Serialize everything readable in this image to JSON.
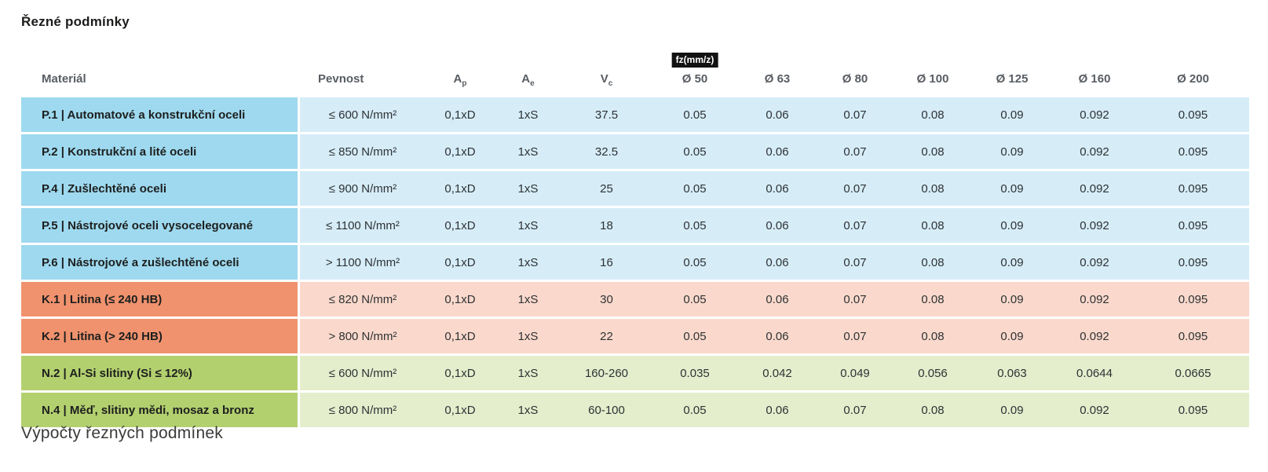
{
  "page": {
    "title": "Řezné podmínky",
    "footer_heading": "Výpočty řezných podmínek"
  },
  "table": {
    "columns": [
      {
        "key": "material",
        "label": "Materiál",
        "sub": ""
      },
      {
        "key": "pevnost",
        "label": "Pevnost",
        "sub": ""
      },
      {
        "key": "ap",
        "label": "A",
        "sub": "p"
      },
      {
        "key": "ae",
        "label": "A",
        "sub": "e"
      },
      {
        "key": "vc",
        "label": "V",
        "sub": "c"
      },
      {
        "key": "d50",
        "label": "Ø 50",
        "sub": "",
        "badge": "fz(mm/z)"
      },
      {
        "key": "d63",
        "label": "Ø 63",
        "sub": ""
      },
      {
        "key": "d80",
        "label": "Ø 80",
        "sub": ""
      },
      {
        "key": "d100",
        "label": "Ø 100",
        "sub": ""
      },
      {
        "key": "d125",
        "label": "Ø 125",
        "sub": ""
      },
      {
        "key": "d160",
        "label": "Ø 160",
        "sub": ""
      },
      {
        "key": "d200",
        "label": "Ø 200",
        "sub": ""
      }
    ],
    "rows": [
      {
        "group": "steel",
        "material": "P.1 | Automatové a konstrukční oceli",
        "cells": [
          "≤ 600 N/mm²",
          "0,1xD",
          "1xS",
          "37.5",
          "0.05",
          "0.06",
          "0.07",
          "0.08",
          "0.09",
          "0.092",
          "0.095"
        ]
      },
      {
        "group": "steel",
        "material": "P.2 | Konstrukční a lité oceli",
        "cells": [
          "≤ 850 N/mm²",
          "0,1xD",
          "1xS",
          "32.5",
          "0.05",
          "0.06",
          "0.07",
          "0.08",
          "0.09",
          "0.092",
          "0.095"
        ]
      },
      {
        "group": "steel",
        "material": "P.4 | Zušlechtěné oceli",
        "cells": [
          "≤ 900 N/mm²",
          "0,1xD",
          "1xS",
          "25",
          "0.05",
          "0.06",
          "0.07",
          "0.08",
          "0.09",
          "0.092",
          "0.095"
        ]
      },
      {
        "group": "steel",
        "material": "P.5 | Nástrojové oceli vysocelegované",
        "cells": [
          "≤ 1100 N/mm²",
          "0,1xD",
          "1xS",
          "18",
          "0.05",
          "0.06",
          "0.07",
          "0.08",
          "0.09",
          "0.092",
          "0.095"
        ]
      },
      {
        "group": "steel",
        "material": "P.6 | Nástrojové a zušlechtěné oceli",
        "cells": [
          "> 1100 N/mm²",
          "0,1xD",
          "1xS",
          "16",
          "0.05",
          "0.06",
          "0.07",
          "0.08",
          "0.09",
          "0.092",
          "0.095"
        ]
      },
      {
        "group": "cast-iron",
        "material": "K.1 | Litina (≤ 240 HB)",
        "cells": [
          "≤ 820 N/mm²",
          "0,1xD",
          "1xS",
          "30",
          "0.05",
          "0.06",
          "0.07",
          "0.08",
          "0.09",
          "0.092",
          "0.095"
        ]
      },
      {
        "group": "cast-iron",
        "material": "K.2 | Litina (> 240 HB)",
        "cells": [
          "> 800 N/mm²",
          "0,1xD",
          "1xS",
          "22",
          "0.05",
          "0.06",
          "0.07",
          "0.08",
          "0.09",
          "0.092",
          "0.095"
        ]
      },
      {
        "group": "non-ferrous",
        "material": "N.2 | Al-Si slitiny (Si ≤ 12%)",
        "cells": [
          "≤ 600 N/mm²",
          "0,1xD",
          "1xS",
          "160-260",
          "0.035",
          "0.042",
          "0.049",
          "0.056",
          "0.063",
          "0.0644",
          "0.0665"
        ]
      },
      {
        "group": "non-ferrous",
        "material": "N.4 | Měď, slitiny mědi, mosaz a bronz",
        "cells": [
          "≤ 800 N/mm²",
          "0,1xD",
          "1xS",
          "60-100",
          "0.05",
          "0.06",
          "0.07",
          "0.08",
          "0.09",
          "0.092",
          "0.095"
        ]
      }
    ]
  },
  "colors": {
    "steel_header": "#9ed9ef",
    "steel_row": "#d6edf8",
    "cast_iron_header": "#f0926e",
    "cast_iron_row": "#fad9cc",
    "non_ferrous_header": "#b3d06f",
    "non_ferrous_row": "#e4eecd",
    "badge_bg": "#121212"
  }
}
